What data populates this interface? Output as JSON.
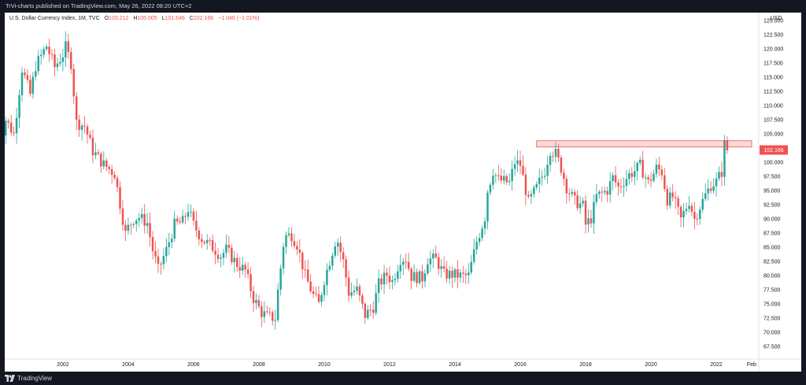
{
  "header": {
    "text": "TrVi-charts published on TradingView.com, May 26, 2022 08:20 UTC+2"
  },
  "legend": {
    "symbol": "U.S. Dollar Currency Index, 1M, TVC",
    "open_label": "O",
    "open": "103.212",
    "high_label": "H",
    "high": "105.005",
    "low_label": "L",
    "low": "101.646",
    "close_label": "C",
    "close": "102.166",
    "change": "−1.046 (−1.01%)"
  },
  "footer": {
    "brand": "TradingView"
  },
  "colors": {
    "up": "#26a69a",
    "down": "#ef5350",
    "zone": "#ef5350",
    "price_tag": "#ef5350",
    "background": "#ffffff",
    "frame": "#131722"
  },
  "chart_data": {
    "type": "candlestick",
    "currency": "USD",
    "last_price_label": "102.166",
    "y_ticks": [
      "125.000",
      "122.500",
      "120.000",
      "117.500",
      "115.000",
      "112.500",
      "110.000",
      "107.500",
      "105.000",
      "102.500",
      "100.000",
      "97.500",
      "95.000",
      "92.500",
      "90.000",
      "87.500",
      "85.000",
      "82.500",
      "80.000",
      "77.500",
      "75.000",
      "72.500",
      "70.000",
      "67.500"
    ],
    "ylim": [
      65.3,
      126.4
    ],
    "x_ticks": [
      "2002",
      "2004",
      "2006",
      "2008",
      "2010",
      "2012",
      "2014",
      "2016",
      "2018",
      "2020",
      "2022",
      "Feb"
    ],
    "x_tick_dates": [
      2002.0,
      2004.0,
      2006.0,
      2008.0,
      2010.0,
      2012.0,
      2014.0,
      2016.0,
      2018.0,
      2020.0,
      2022.0,
      2023.08
    ],
    "xlim": [
      2000.22,
      2023.3
    ],
    "resistance_zone": {
      "x_start": "2016-07",
      "x_end": "2023-02",
      "y_low": 102.7,
      "y_high": 103.8
    },
    "monthly_close": [
      "2000-01:102.0",
      "2000-04:107.5",
      "2000-07:105.0",
      "2000-10:116.5",
      "2001-01:112.0",
      "2001-03:117.0",
      "2001-07:120.5",
      "2001-10:116.8",
      "2002-01:119.0",
      "2002-02:120.3",
      "2002-04:117.5",
      "2002-06:107.0",
      "2002-09:106.4",
      "2002-12:102.0",
      "2003-04:99.6",
      "2003-08:98.0",
      "2003-12:87.4",
      "2004-01:88.5",
      "2004-03:90.0",
      "2004-05:90.3",
      "2004-08:89.3",
      "2004-10:84.5",
      "2004-12:81.0",
      "2005-03:84.5",
      "2005-06:89.0",
      "2005-09:89.5",
      "2005-11:91.8",
      "2006-01:89.0",
      "2006-04:86.5",
      "2006-08:85.0",
      "2006-11:83.5",
      "2007-01:84.6",
      "2007-05:82.0",
      "2007-08:80.9",
      "2007-11:76.0",
      "2008-02:73.5",
      "2008-04:72.8",
      "2008-07:72.5",
      "2008-08:77.3",
      "2008-10:85.5",
      "2008-11:87.0",
      "2009-01:87.2",
      "2009-03:85.5",
      "2009-06:80.0",
      "2009-09:76.5",
      "2009-11:75.0",
      "2010-01:79.3",
      "2010-05:86.0",
      "2010-06:86.0",
      "2010-08:82.5",
      "2010-10:77.0",
      "2011-01:77.5",
      "2011-04:73.0",
      "2011-07:74.5",
      "2011-09:78.5",
      "2011-12:80.2",
      "2012-02:79.0",
      "2012-05:83.0",
      "2012-07:83.0",
      "2012-09:79.9",
      "2013-01:79.6",
      "2013-03:82.9",
      "2013-06:82.9",
      "2013-09:80.2",
      "2013-12:80.2",
      "2014-04:79.9",
      "2014-06:80.0",
      "2014-09:86.0",
      "2014-12:90.3",
      "2015-01:95.0",
      "2015-03:98.5",
      "2015-05:96.9",
      "2015-09:96.4",
      "2015-11:100.0",
      "2016-01:99.6",
      "2016-04:92.9",
      "2016-07:95.5",
      "2016-10:98.5",
      "2016-12:102.2",
      "2017-02:101.5",
      "2017-04:99.0",
      "2017-06:95.6",
      "2017-09:93.1",
      "2017-12:92.3",
      "2018-01:89.0",
      "2018-03:90.1",
      "2018-05:94.0",
      "2018-07:94.5",
      "2018-09:95.1",
      "2018-11:97.3",
      "2019-01:95.6",
      "2019-05:97.8",
      "2019-07:98.5",
      "2019-09:99.4",
      "2019-12:96.4",
      "2020-02:98.0",
      "2020-03:99.0",
      "2020-05:98.3",
      "2020-07:93.4",
      "2020-09:93.9",
      "2020-12:89.9",
      "2021-03:93.2",
      "2021-05:90.0",
      "2021-07:92.2",
      "2021-09:94.2",
      "2021-11:96.0",
      "2022-01:96.6",
      "2022-03:98.3",
      "2022-04:103.2",
      "2022-05:102.2"
    ]
  }
}
